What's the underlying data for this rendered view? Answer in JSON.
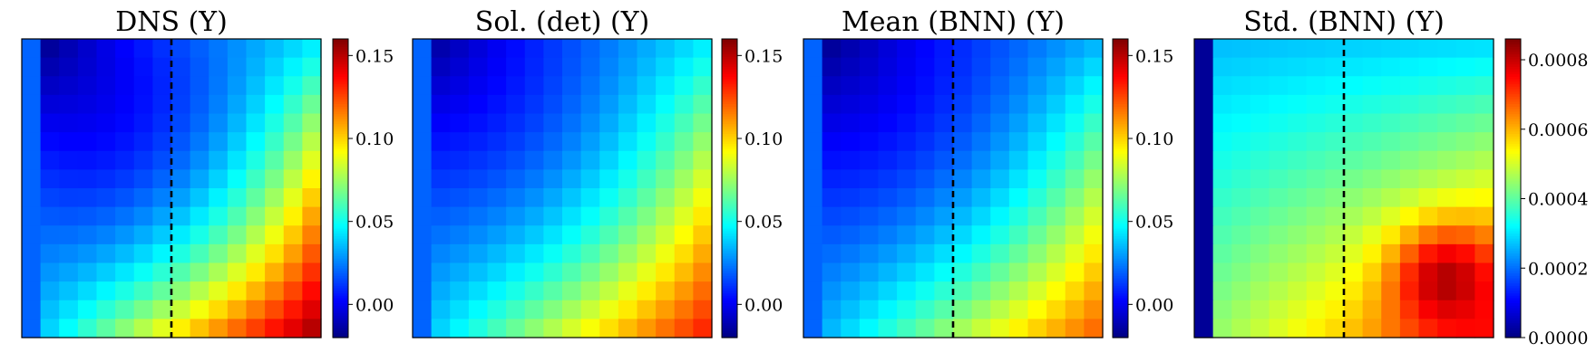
{
  "chart_data": [
    {
      "type": "heatmap",
      "title": "DNS (Y)",
      "grid_size": [
        16,
        16
      ],
      "dashed_vline_at_column": 7.5,
      "colormap": "jet",
      "color_range": [
        -0.02,
        0.16
      ],
      "colorbar_ticks": [
        0.0,
        0.05,
        0.1,
        0.15
      ],
      "colorbar_tick_labels": [
        "0.00",
        "0.05",
        "0.10",
        "0.15"
      ],
      "first_column_value": 0.02,
      "corners": {
        "top_left": -0.015,
        "top_right": 0.045,
        "bottom_left": 0.04,
        "bottom_right": 0.15
      },
      "saddle": 0.028
    },
    {
      "type": "heatmap",
      "title": "Sol. (det) (Y)",
      "grid_size": [
        16,
        16
      ],
      "colormap": "jet",
      "color_range": [
        -0.02,
        0.16
      ],
      "colorbar_ticks": [
        0.0,
        0.05,
        0.1,
        0.15
      ],
      "colorbar_tick_labels": [
        "0.00",
        "0.05",
        "0.10",
        "0.15"
      ],
      "first_column_value": 0.02,
      "corners": {
        "top_left": -0.012,
        "top_right": 0.045,
        "bottom_left": 0.04,
        "bottom_right": 0.13
      },
      "saddle": 0.035
    },
    {
      "type": "heatmap",
      "title": "Mean (BNN) (Y)",
      "grid_size": [
        16,
        16
      ],
      "dashed_vline_at_column": 7.5,
      "colormap": "jet",
      "color_range": [
        -0.02,
        0.16
      ],
      "colorbar_ticks": [
        0.0,
        0.05,
        0.1,
        0.15
      ],
      "colorbar_tick_labels": [
        "0.00",
        "0.05",
        "0.10",
        "0.15"
      ],
      "first_column_value": 0.02,
      "corners": {
        "top_left": -0.015,
        "top_right": 0.035,
        "bottom_left": 0.035,
        "bottom_right": 0.118
      },
      "saddle": 0.028
    },
    {
      "type": "heatmap",
      "title": "Std. (BNN) (Y)",
      "grid_size": [
        16,
        16
      ],
      "dashed_vline_at_column": 7.5,
      "colormap": "jet",
      "color_range": [
        0.0,
        0.00086
      ],
      "colorbar_ticks": [
        0.0,
        0.0002,
        0.0004,
        0.0006,
        0.0008
      ],
      "colorbar_tick_labels": [
        "0.0000",
        "0.0002",
        "0.0004",
        "0.0006",
        "0.0008"
      ],
      "first_column_value": 2e-05,
      "corners": {
        "top_left": 0.00027,
        "top_right": 0.0003,
        "bottom_left": 0.00045,
        "bottom_right": 0.00072
      },
      "saddle": 0.00043,
      "hotspot": {
        "row": 12.5,
        "col": 13,
        "value": 0.00082
      }
    }
  ]
}
